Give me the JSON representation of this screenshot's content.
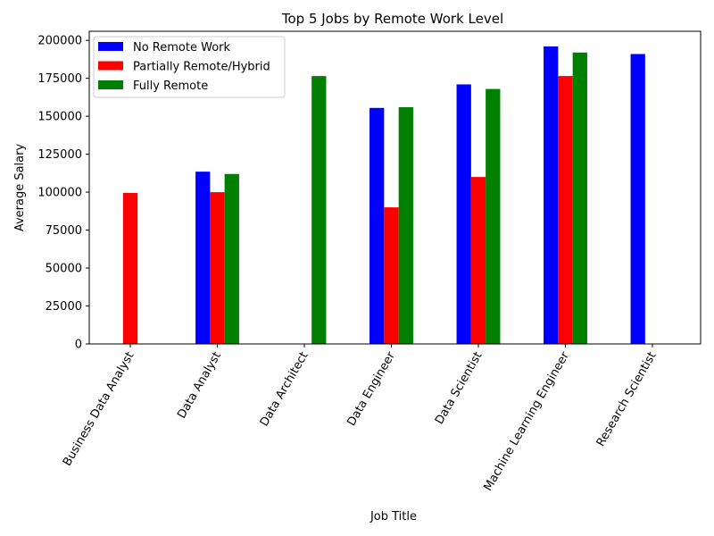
{
  "chart_data": {
    "type": "bar",
    "title": "Top 5 Jobs by Remote Work Level",
    "xlabel": "Job Title",
    "ylabel": "Average Salary",
    "ylim": [
      0,
      206000
    ],
    "yticks": [
      0,
      25000,
      50000,
      75000,
      100000,
      125000,
      150000,
      175000,
      200000
    ],
    "categories": [
      "Business Data Analyst",
      "Data Analyst",
      "Data Architect",
      "Data Engineer",
      "Data Scientist",
      "Machine Learning Engineer",
      "Research Scientist"
    ],
    "series": [
      {
        "name": "No Remote Work",
        "color": "#0000ff",
        "values": [
          null,
          113500,
          null,
          155500,
          171000,
          196000,
          191000
        ]
      },
      {
        "name": "Partially Remote/Hybrid",
        "color": "#ff0000",
        "values": [
          99500,
          100000,
          null,
          90000,
          110000,
          176500,
          null
        ]
      },
      {
        "name": "Fully Remote",
        "color": "#008000",
        "values": [
          null,
          112000,
          176500,
          156000,
          168000,
          192000,
          null
        ]
      }
    ],
    "legend_position": "top-left",
    "grid": false,
    "x_tick_rotation": 60
  }
}
